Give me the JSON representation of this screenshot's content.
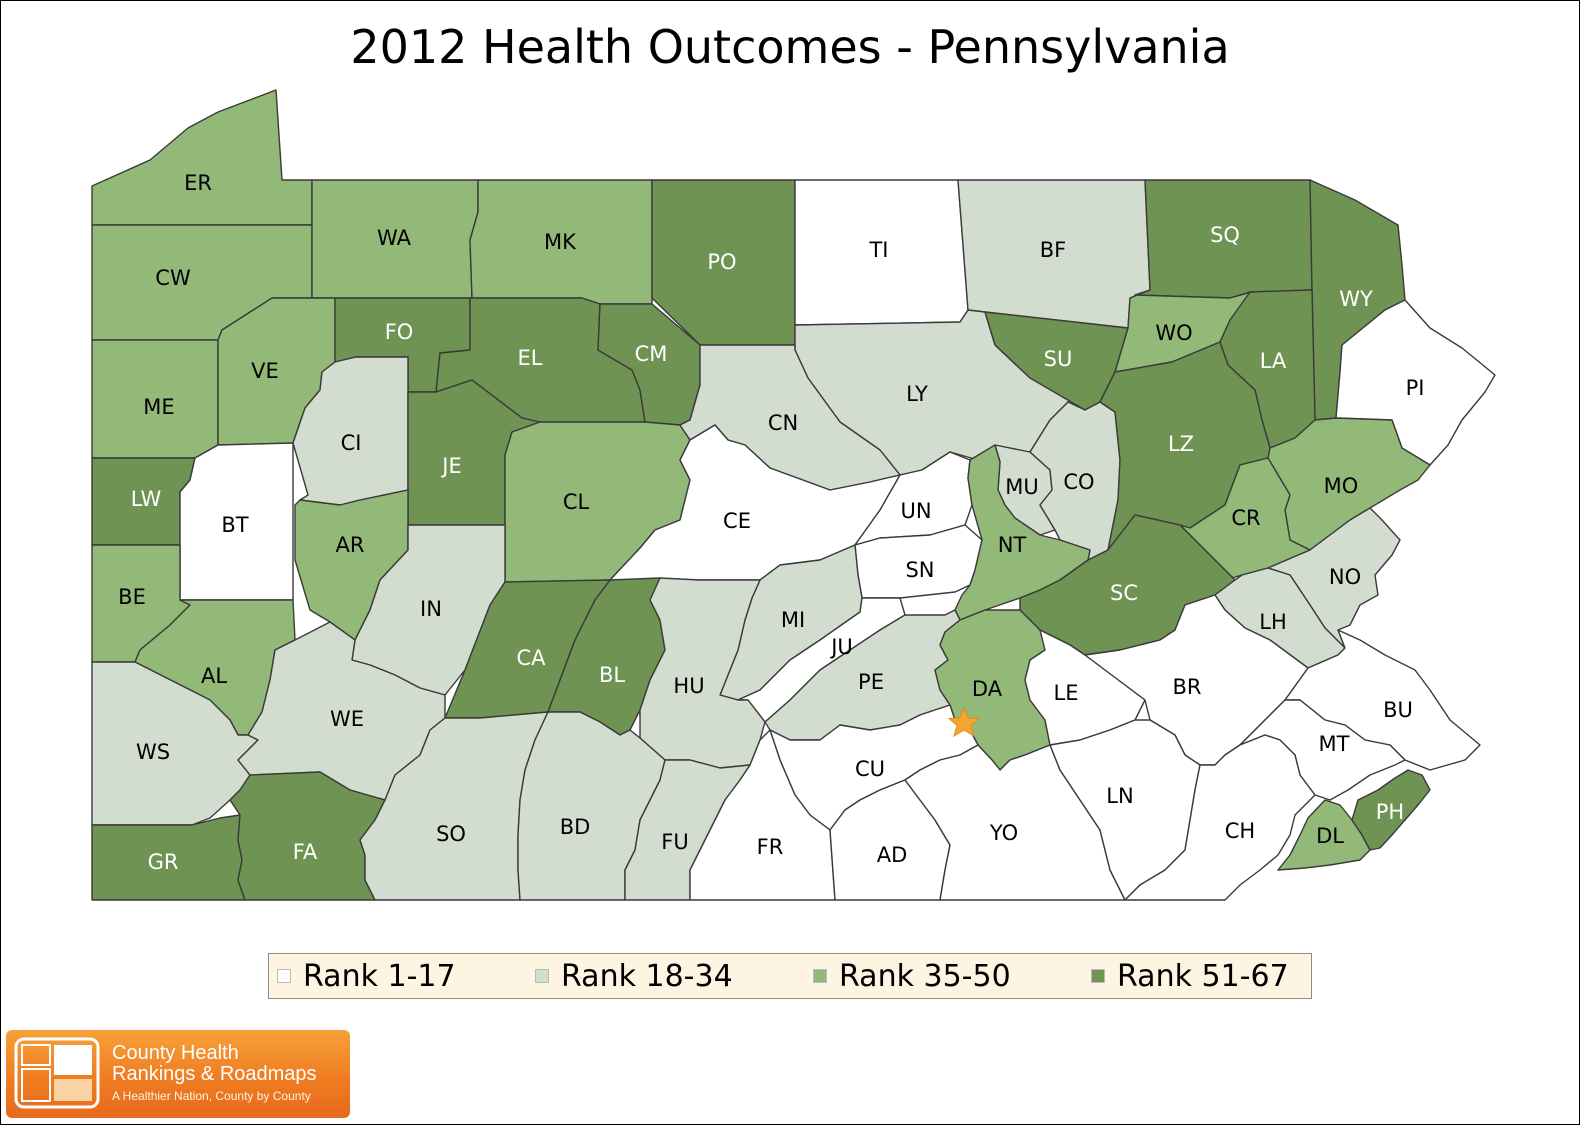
{
  "title": "2012 Health Outcomes - Pennsylvania",
  "colors": {
    "rank_1_17": "#ffffff",
    "rank_18_34": "#d2ddd0",
    "rank_35_50": "#93b978",
    "rank_51_67": "#6e9353",
    "star": "#f5a533"
  },
  "legend": [
    {
      "label": "Rank 1-17",
      "color": "#ffffff"
    },
    {
      "label": "Rank 18-34",
      "color": "#d2ddd0"
    },
    {
      "label": "Rank 35-50",
      "color": "#93b978"
    },
    {
      "label": "Rank 51-67",
      "color": "#6e9353"
    }
  ],
  "counties": [
    {
      "code": "ER",
      "rank_group": "35-50"
    },
    {
      "code": "CW",
      "rank_group": "35-50"
    },
    {
      "code": "WA",
      "rank_group": "35-50"
    },
    {
      "code": "MK",
      "rank_group": "35-50"
    },
    {
      "code": "PO",
      "rank_group": "51-67"
    },
    {
      "code": "TI",
      "rank_group": "1-17"
    },
    {
      "code": "BF",
      "rank_group": "18-34"
    },
    {
      "code": "SQ",
      "rank_group": "51-67"
    },
    {
      "code": "WY",
      "rank_group": "51-67"
    },
    {
      "code": "ME",
      "rank_group": "35-50"
    },
    {
      "code": "VE",
      "rank_group": "35-50"
    },
    {
      "code": "FO",
      "rank_group": "51-67"
    },
    {
      "code": "EL",
      "rank_group": "51-67"
    },
    {
      "code": "CM",
      "rank_group": "51-67"
    },
    {
      "code": "LY",
      "rank_group": "18-34"
    },
    {
      "code": "SU",
      "rank_group": "51-67"
    },
    {
      "code": "WO",
      "rank_group": "35-50"
    },
    {
      "code": "LA",
      "rank_group": "51-67"
    },
    {
      "code": "PI",
      "rank_group": "1-17"
    },
    {
      "code": "LW",
      "rank_group": "51-67"
    },
    {
      "code": "BT",
      "rank_group": "1-17"
    },
    {
      "code": "CI",
      "rank_group": "18-34"
    },
    {
      "code": "JE",
      "rank_group": "51-67"
    },
    {
      "code": "CL",
      "rank_group": "35-50"
    },
    {
      "code": "CN",
      "rank_group": "18-34"
    },
    {
      "code": "CE",
      "rank_group": "1-17"
    },
    {
      "code": "UN",
      "rank_group": "1-17"
    },
    {
      "code": "MU",
      "rank_group": "18-34"
    },
    {
      "code": "CO",
      "rank_group": "18-34"
    },
    {
      "code": "LZ",
      "rank_group": "51-67"
    },
    {
      "code": "MO",
      "rank_group": "35-50"
    },
    {
      "code": "AR",
      "rank_group": "35-50"
    },
    {
      "code": "BE",
      "rank_group": "35-50"
    },
    {
      "code": "IN",
      "rank_group": "18-34"
    },
    {
      "code": "SN",
      "rank_group": "1-17"
    },
    {
      "code": "NT",
      "rank_group": "35-50"
    },
    {
      "code": "CR",
      "rank_group": "35-50"
    },
    {
      "code": "SC",
      "rank_group": "51-67"
    },
    {
      "code": "NO",
      "rank_group": "18-34"
    },
    {
      "code": "AL",
      "rank_group": "35-50"
    },
    {
      "code": "CA",
      "rank_group": "51-67"
    },
    {
      "code": "BL",
      "rank_group": "51-67"
    },
    {
      "code": "MI",
      "rank_group": "18-34"
    },
    {
      "code": "JU",
      "rank_group": "1-17"
    },
    {
      "code": "LH",
      "rank_group": "18-34"
    },
    {
      "code": "WS",
      "rank_group": "18-34"
    },
    {
      "code": "WE",
      "rank_group": "18-34"
    },
    {
      "code": "HU",
      "rank_group": "18-34"
    },
    {
      "code": "PE",
      "rank_group": "18-34"
    },
    {
      "code": "DA",
      "rank_group": "35-50"
    },
    {
      "code": "LE",
      "rank_group": "1-17"
    },
    {
      "code": "BR",
      "rank_group": "1-17"
    },
    {
      "code": "BU",
      "rank_group": "1-17"
    },
    {
      "code": "MT",
      "rank_group": "1-17"
    },
    {
      "code": "CU",
      "rank_group": "1-17"
    },
    {
      "code": "GR",
      "rank_group": "51-67"
    },
    {
      "code": "FA",
      "rank_group": "51-67"
    },
    {
      "code": "SO",
      "rank_group": "18-34"
    },
    {
      "code": "BD",
      "rank_group": "18-34"
    },
    {
      "code": "FU",
      "rank_group": "18-34"
    },
    {
      "code": "FR",
      "rank_group": "1-17"
    },
    {
      "code": "AD",
      "rank_group": "1-17"
    },
    {
      "code": "YO",
      "rank_group": "1-17"
    },
    {
      "code": "LN",
      "rank_group": "1-17"
    },
    {
      "code": "CH",
      "rank_group": "1-17"
    },
    {
      "code": "DL",
      "rank_group": "35-50"
    },
    {
      "code": "PH",
      "rank_group": "51-67"
    }
  ],
  "logo": {
    "line1": "County Health",
    "line2": "Rankings & Roadmaps",
    "tagline": "A Healthier Nation, County by County"
  }
}
